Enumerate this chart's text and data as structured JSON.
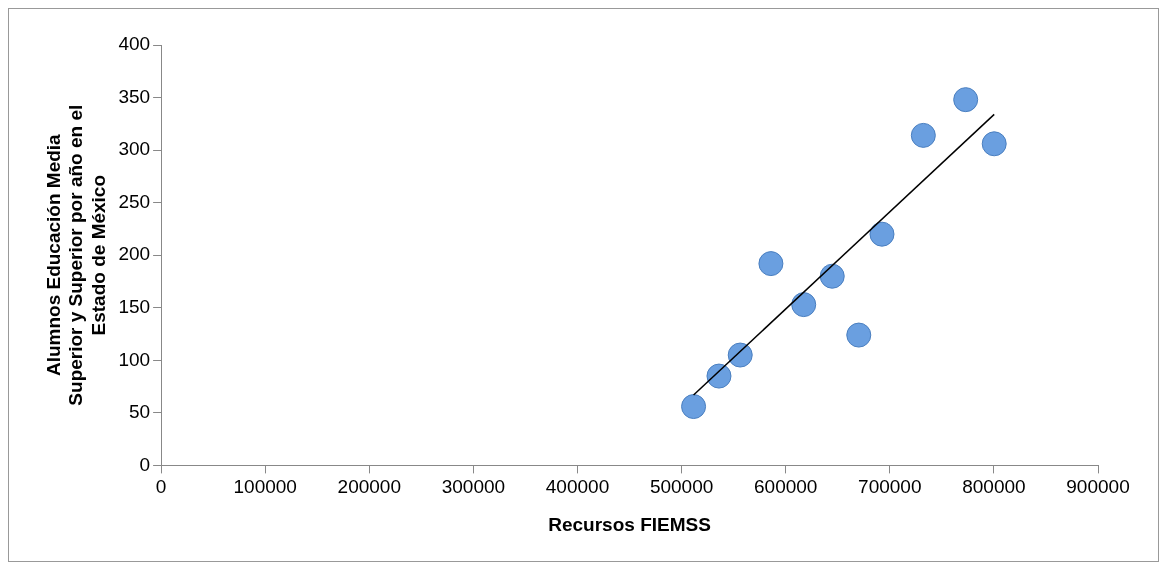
{
  "chart_data": {
    "type": "scatter",
    "xlabel": "Recursos FIEMSS",
    "ylabel": "Alumnos Educación Media\nSuperior y Superior por año en el\nEstado de México",
    "xlim": [
      0,
      900000
    ],
    "xticks": [
      0,
      100000,
      200000,
      300000,
      400000,
      500000,
      600000,
      700000,
      800000,
      900000
    ],
    "ylim": [
      0,
      400
    ],
    "yticks": [
      0,
      50,
      100,
      150,
      200,
      250,
      300,
      350,
      400
    ],
    "grid": false,
    "legend": false,
    "marker": "circle",
    "series": [
      {
        "type": "scatter",
        "color": "#6a9fe0",
        "x": [
          511500,
          535900,
          556300,
          585800,
          617300,
          644700,
          670200,
          692500,
          732200,
          772900,
          800300
        ],
        "values": [
          56,
          85,
          105,
          192,
          153,
          180,
          124,
          220,
          314,
          348,
          306
        ]
      },
      {
        "type": "line",
        "color": "#000000",
        "x": [
          511500,
          800300
        ],
        "values": [
          67,
          334
        ],
        "marker": "none"
      }
    ]
  }
}
